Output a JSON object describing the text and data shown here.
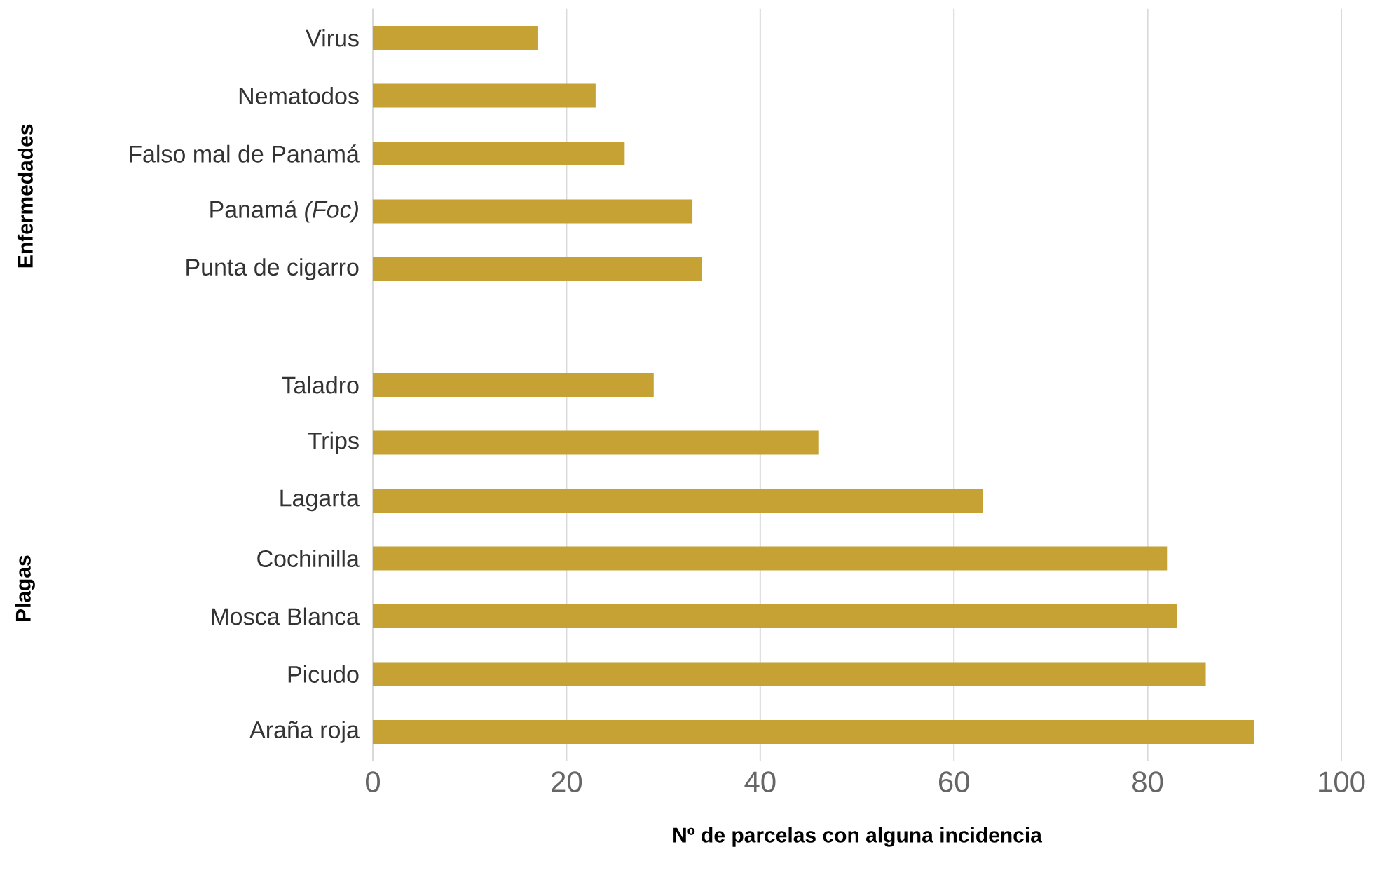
{
  "chart_data": {
    "type": "bar",
    "orientation": "horizontal",
    "categories": [
      "Virus",
      "Nematodos",
      "Falso mal de Panamá",
      "Panamá *(Foc)*",
      "Punta de cigarro",
      null,
      "Taladro",
      "Trips",
      "Lagarta",
      "Cochinilla",
      "Mosca Blanca",
      "Picudo",
      "Araña roja"
    ],
    "values": [
      17,
      23,
      26,
      33,
      34,
      null,
      29,
      46,
      63,
      82,
      83,
      86,
      91
    ],
    "color": "#c6a234",
    "xlim": [
      0,
      100
    ],
    "xticks": [
      0,
      20,
      40,
      60,
      80,
      100
    ],
    "xlabel": "Nº de parcelas con alguna incidencia",
    "annotations": [
      "Enfermedades",
      "Plagas"
    ],
    "grid": "x"
  }
}
